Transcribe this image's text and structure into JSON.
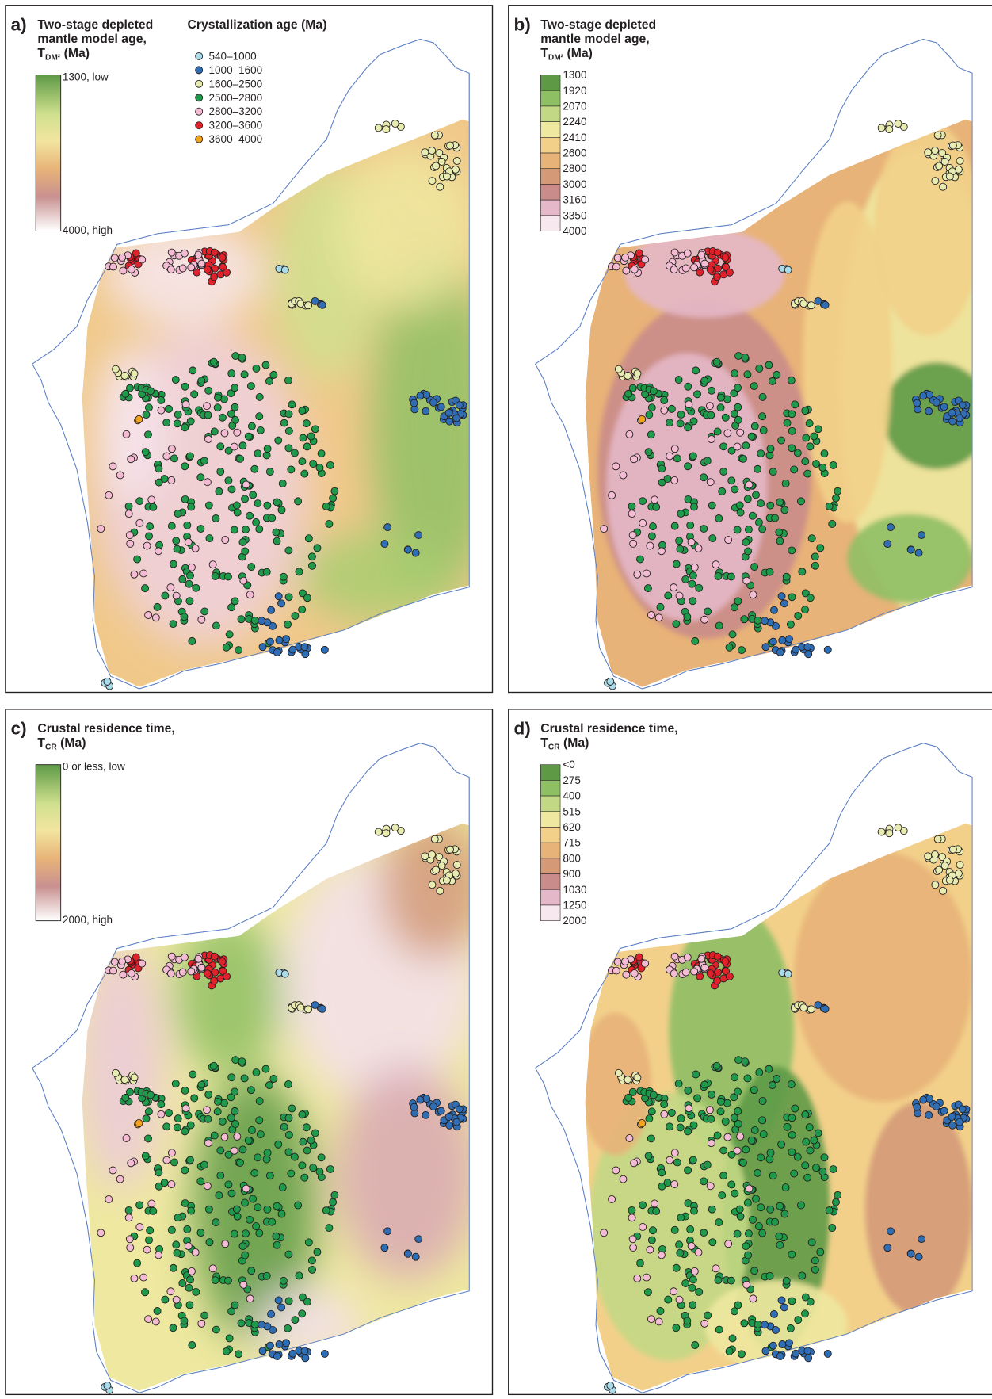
{
  "points_legend": {
    "title": "Crystallization age (Ma)",
    "items": [
      {
        "label": "540–1000",
        "color": "#a9dbe9"
      },
      {
        "label": "1000–1600",
        "color": "#2f6eb5"
      },
      {
        "label": "1600–2500",
        "color": "#e9ecb0"
      },
      {
        "label": "2500–2800",
        "color": "#1f9a4b"
      },
      {
        "label": "2800–3200",
        "color": "#f4bcd3"
      },
      {
        "label": "3200–3600",
        "color": "#e1222b"
      },
      {
        "label": "3600–4000",
        "color": "#f3a21c"
      }
    ]
  },
  "panels": [
    {
      "letter": "a)",
      "title_lines": [
        "Two-stage depleted",
        "mantle model age,"
      ],
      "symbol": "T",
      "subscript": "DM²",
      "unit": "(Ma)",
      "legend": {
        "kind": "continuous",
        "top": "1300, low",
        "bottom": "4000, high"
      }
    },
    {
      "letter": "b)",
      "title_lines": [
        "Two-stage depleted",
        "mantle model age,"
      ],
      "symbol": "T",
      "subscript": "DM²",
      "unit": "(Ma)",
      "legend": {
        "kind": "discrete",
        "labels": [
          "1300",
          "1920",
          "2070",
          "2240",
          "2410",
          "2600",
          "2800",
          "3000",
          "3160",
          "3350",
          "4000"
        ]
      }
    },
    {
      "letter": "c)",
      "title_lines": [
        "Crustal residence time,"
      ],
      "symbol": "T",
      "subscript": "CR",
      "unit": "(Ma)",
      "legend": {
        "kind": "continuous",
        "top": "0 or less, low",
        "bottom": "2000, high"
      }
    },
    {
      "letter": "d)",
      "title_lines": [
        "Crustal residence time,"
      ],
      "symbol": "T",
      "subscript": "CR",
      "unit": "(Ma)",
      "legend": {
        "kind": "discrete",
        "labels": [
          "<0",
          "275",
          "400",
          "515",
          "620",
          "715",
          "800",
          "900",
          "1030",
          "1250",
          "2000"
        ]
      }
    }
  ]
}
